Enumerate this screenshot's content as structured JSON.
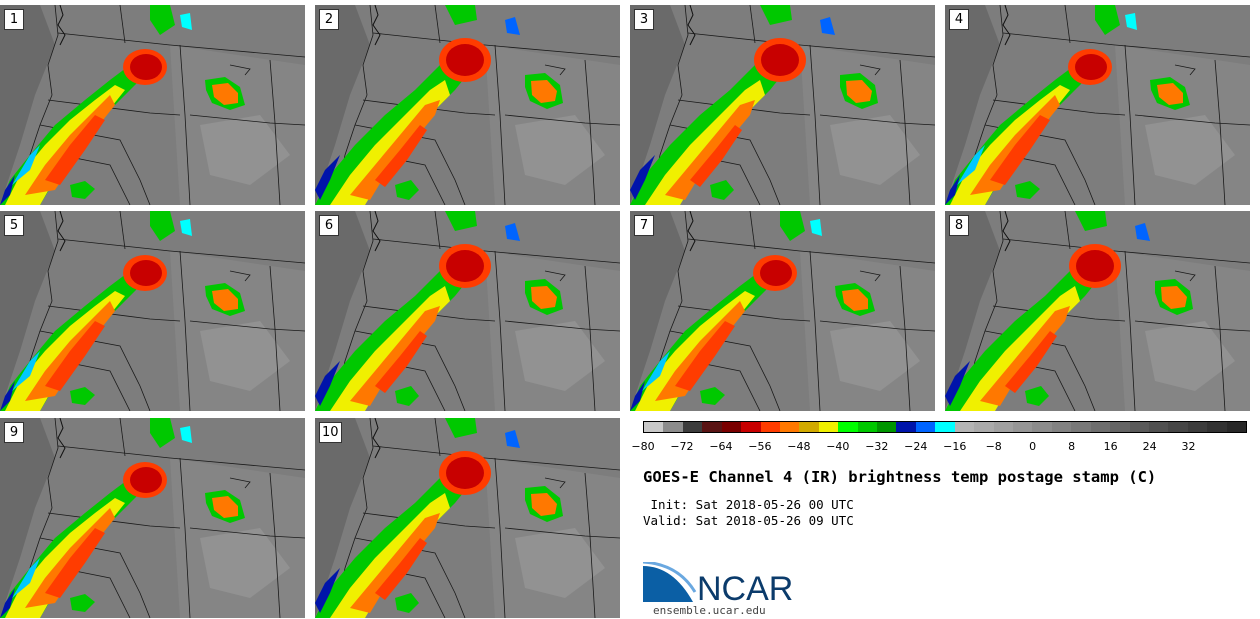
{
  "panels": [
    {
      "num": "1"
    },
    {
      "num": "2"
    },
    {
      "num": "3"
    },
    {
      "num": "4"
    },
    {
      "num": "5"
    },
    {
      "num": "6"
    },
    {
      "num": "7"
    },
    {
      "num": "8"
    },
    {
      "num": "9"
    },
    {
      "num": "10"
    }
  ],
  "colorbar": {
    "colors": [
      "#c8c8c8",
      "#8c8c8c",
      "#3c3c3c",
      "#5a1414",
      "#7a0000",
      "#c80000",
      "#ff3c00",
      "#ff7800",
      "#d2aa00",
      "#f0f000",
      "#00ff00",
      "#00c800",
      "#009600",
      "#0014aa",
      "#0064ff",
      "#00ffff",
      "#b4b4b4",
      "#aaaaaa",
      "#a0a0a0",
      "#969696",
      "#8c8c8c",
      "#828282",
      "#787878",
      "#6e6e6e",
      "#646464",
      "#5a5a5a",
      "#505050",
      "#464646",
      "#3c3c3c",
      "#323232",
      "#282828"
    ],
    "ticks": [
      "−80",
      "−72",
      "−64",
      "−56",
      "−48",
      "−40",
      "−32",
      "−24",
      "−16",
      "−8",
      "0",
      "8",
      "16",
      "24",
      "32"
    ]
  },
  "title": "GOES-E Channel 4 (IR) brightness temp postage stamp (C)",
  "init_line": " Init: Sat 2018-05-26 00 UTC",
  "valid_line": "Valid: Sat 2018-05-26 09 UTC",
  "logo_text": "NCAR",
  "logo_url": "ensemble.ucar.edu"
}
